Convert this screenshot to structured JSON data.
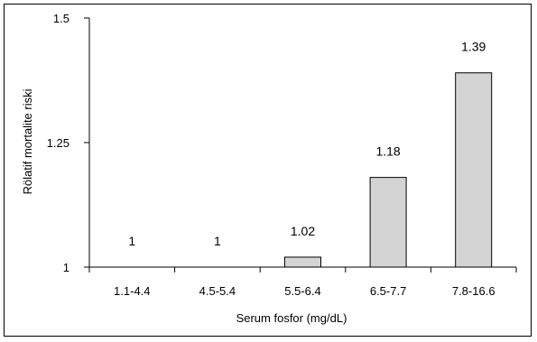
{
  "chart_data": {
    "type": "bar",
    "title": "",
    "xlabel": "Serum fosfor (mg/dL)",
    "ylabel": "Rölatif mortalite riski",
    "categories": [
      "1.1-4.4",
      "4.5-5.4",
      "5.5-6.4",
      "6.5-7.7",
      "7.8-16.6"
    ],
    "values": [
      1,
      1,
      1.02,
      1.18,
      1.39
    ],
    "data_labels": [
      "1",
      "1",
      "1.02",
      "1.18",
      "1.39"
    ],
    "ylim": [
      1,
      1.5
    ],
    "yticks": [
      1,
      1.25,
      1.5
    ],
    "ytick_labels": [
      "1",
      "1.25",
      "1.5"
    ],
    "grid": false,
    "legend": "none",
    "bar_color": "#d4d4d4",
    "bar_edge_color": "#000000"
  }
}
